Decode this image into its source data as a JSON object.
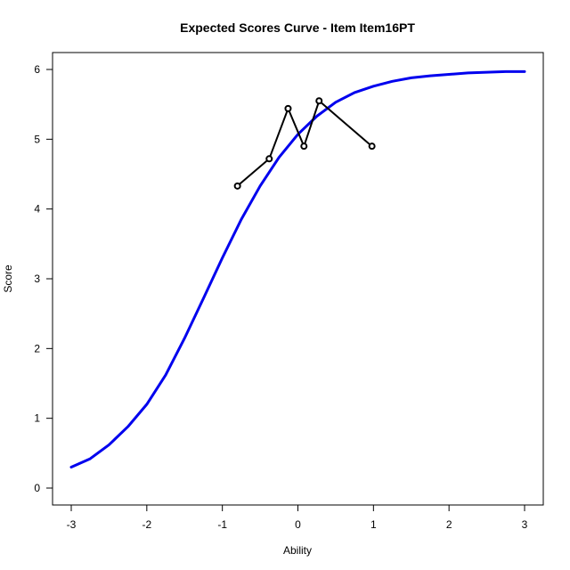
{
  "chart_data": {
    "type": "line",
    "title": "Expected Scores Curve - Item  Item16PT",
    "xlabel": "Ability",
    "ylabel": "Score",
    "xlim": [
      -3,
      3
    ],
    "ylim": [
      0,
      6
    ],
    "xticks": [
      "-3",
      "-2",
      "-1",
      "0",
      "1",
      "2",
      "3"
    ],
    "yticks": [
      "0",
      "1",
      "2",
      "3",
      "4",
      "5",
      "6"
    ],
    "grid": false,
    "series": [
      {
        "kind": "curve",
        "color": "#0000ee",
        "x": [
          -3.0,
          -2.75,
          -2.5,
          -2.25,
          -2.0,
          -1.75,
          -1.5,
          -1.25,
          -1.0,
          -0.75,
          -0.5,
          -0.25,
          0.0,
          0.25,
          0.5,
          0.75,
          1.0,
          1.25,
          1.5,
          1.75,
          2.0,
          2.25,
          2.5,
          2.75,
          3.0
        ],
        "y": [
          0.3,
          0.42,
          0.62,
          0.88,
          1.2,
          1.62,
          2.15,
          2.72,
          3.3,
          3.85,
          4.33,
          4.74,
          5.07,
          5.33,
          5.53,
          5.67,
          5.76,
          5.83,
          5.88,
          5.91,
          5.93,
          5.95,
          5.96,
          5.97,
          5.97
        ]
      },
      {
        "kind": "observed",
        "color": "#000000",
        "x": [
          -0.8,
          -0.38,
          -0.13,
          0.08,
          0.28,
          0.98
        ],
        "y": [
          4.33,
          4.72,
          5.44,
          4.9,
          5.55,
          4.9
        ]
      }
    ]
  }
}
